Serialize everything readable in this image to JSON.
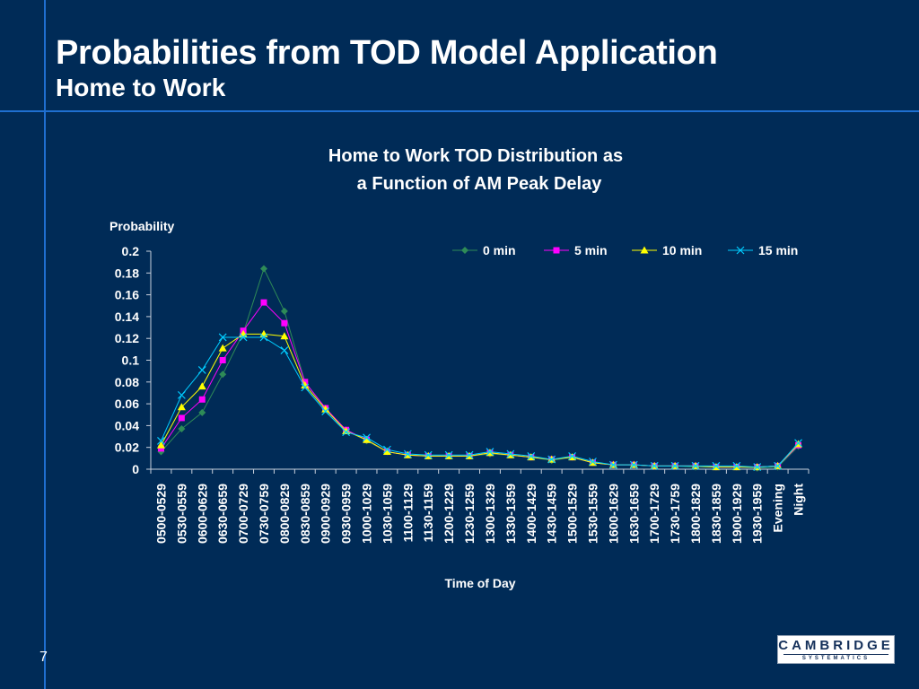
{
  "slide": {
    "title": "Probabilities from TOD Model Application",
    "subtitle": "Home to Work",
    "page_number": "7",
    "logo_main": "CAMBRIDGE",
    "logo_sub": "SYSTEMATICS"
  },
  "colors": {
    "background": "#002b57",
    "accent_lines": "#1f6fd0",
    "series_0": "#2e8b57",
    "series_5": "#ff00ff",
    "series_10": "#ffff00",
    "series_15": "#00ccff"
  },
  "chart_data": {
    "type": "line",
    "title_line1": "Home to Work TOD Distribution as",
    "title_line2": "a Function of AM Peak Delay",
    "ylabel": "Probability",
    "xlabel": "Time of Day",
    "ylim": [
      0,
      0.2
    ],
    "yticks": [
      "0",
      "0.02",
      "0.04",
      "0.06",
      "0.08",
      "0.1",
      "0.12",
      "0.14",
      "0.16",
      "0.18",
      "0.2"
    ],
    "grid": false,
    "legend_position": "top-right",
    "categories": [
      "0500-0529",
      "0530-0559",
      "0600-0629",
      "0630-0659",
      "0700-0729",
      "0730-0759",
      "0800-0829",
      "0830-0859",
      "0900-0929",
      "0930-0959",
      "1000-1029",
      "1030-1059",
      "1100-1129",
      "1130-1159",
      "1200-1229",
      "1230-1259",
      "1300-1329",
      "1330-1359",
      "1400-1429",
      "1430-1459",
      "1500-1529",
      "1530-1559",
      "1600-1629",
      "1630-1659",
      "1700-1729",
      "1730-1759",
      "1800-1829",
      "1830-1859",
      "1900-1929",
      "1930-1959",
      "Evening",
      "Night"
    ],
    "series": [
      {
        "name": "0 min",
        "marker": "diamond",
        "values": [
          0.016,
          0.037,
          0.052,
          0.087,
          0.125,
          0.184,
          0.145,
          0.08,
          0.055,
          0.036,
          0.026,
          0.016,
          0.013,
          0.012,
          0.012,
          0.012,
          0.014,
          0.013,
          0.011,
          0.008,
          0.011,
          0.006,
          0.004,
          0.004,
          0.003,
          0.003,
          0.002,
          0.002,
          0.002,
          0.001,
          0.002,
          0.021
        ]
      },
      {
        "name": "5 min",
        "marker": "square",
        "values": [
          0.019,
          0.047,
          0.064,
          0.1,
          0.127,
          0.153,
          0.134,
          0.08,
          0.056,
          0.036,
          0.027,
          0.016,
          0.013,
          0.012,
          0.012,
          0.012,
          0.015,
          0.013,
          0.011,
          0.009,
          0.011,
          0.006,
          0.004,
          0.004,
          0.003,
          0.003,
          0.003,
          0.002,
          0.002,
          0.002,
          0.003,
          0.022
        ]
      },
      {
        "name": "10 min",
        "marker": "triangle",
        "values": [
          0.022,
          0.057,
          0.076,
          0.111,
          0.124,
          0.124,
          0.122,
          0.077,
          0.055,
          0.035,
          0.027,
          0.016,
          0.013,
          0.012,
          0.012,
          0.012,
          0.015,
          0.013,
          0.011,
          0.009,
          0.011,
          0.006,
          0.004,
          0.004,
          0.003,
          0.003,
          0.003,
          0.002,
          0.002,
          0.002,
          0.003,
          0.023
        ]
      },
      {
        "name": "15 min",
        "marker": "x",
        "values": [
          0.026,
          0.068,
          0.091,
          0.121,
          0.121,
          0.121,
          0.109,
          0.075,
          0.053,
          0.034,
          0.029,
          0.018,
          0.014,
          0.013,
          0.013,
          0.013,
          0.016,
          0.014,
          0.012,
          0.009,
          0.012,
          0.007,
          0.004,
          0.004,
          0.003,
          0.003,
          0.003,
          0.003,
          0.003,
          0.002,
          0.003,
          0.024
        ]
      }
    ]
  }
}
